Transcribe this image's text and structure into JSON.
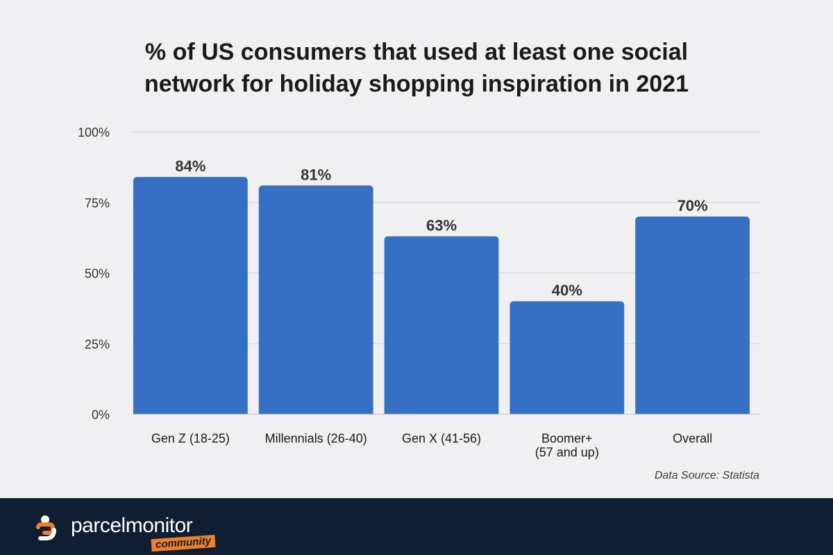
{
  "chart_data": {
    "type": "bar",
    "title_lines": [
      "% of US consumers that used at least one social",
      "network for holiday shopping inspiration in 2021"
    ],
    "categories": [
      [
        "Gen Z (18-25)"
      ],
      [
        "Millennials (26-40)"
      ],
      [
        "Gen X (41-56)"
      ],
      [
        "Boomer+",
        "(57 and up)"
      ],
      [
        "Overall"
      ]
    ],
    "values": [
      84,
      81,
      63,
      40,
      70
    ],
    "value_labels": [
      "84%",
      "81%",
      "63%",
      "40%",
      "70%"
    ],
    "yticks": [
      0,
      25,
      50,
      75,
      100
    ],
    "ytick_labels": [
      "0%",
      "25%",
      "50%",
      "75%",
      "100%"
    ],
    "ylim": [
      0,
      100
    ],
    "grid": true,
    "xlabel": "",
    "ylabel": "",
    "bar_color": "#3670c4"
  },
  "source": "Data Source: Statista",
  "footer": {
    "brand": "parcelmonitor",
    "badge": "community",
    "background": "#0f1e33",
    "accent": "#f07f2a"
  }
}
